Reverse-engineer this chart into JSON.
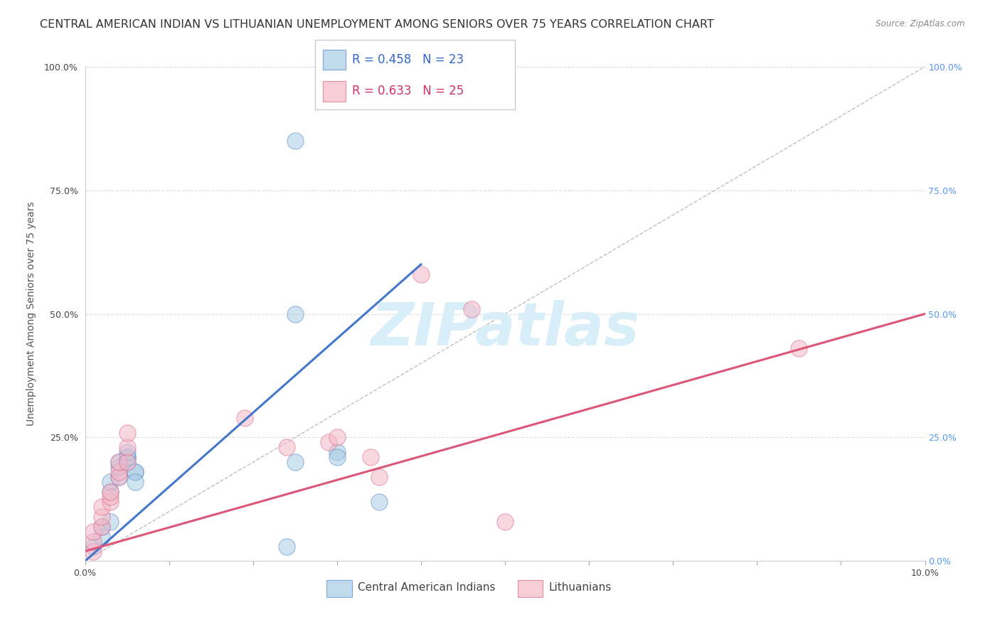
{
  "title": "CENTRAL AMERICAN INDIAN VS LITHUANIAN UNEMPLOYMENT AMONG SENIORS OVER 75 YEARS CORRELATION CHART",
  "source": "Source: ZipAtlas.com",
  "ylabel": "Unemployment Among Seniors over 75 years",
  "xlim": [
    0.0,
    0.1
  ],
  "ylim": [
    0.0,
    1.0
  ],
  "color_blue_fill": "#a8cce4",
  "color_pink_fill": "#f4b8c8",
  "color_blue_edge": "#5588cc",
  "color_pink_edge": "#dd6688",
  "color_blue_line": "#4477cc",
  "color_pink_line": "#dd5577",
  "color_diag": "#aaaaaa",
  "color_right_tick": "#5599ee",
  "watermark_text": "ZIPatlas",
  "watermark_color": "#d8eef8",
  "blue_points_x": [
    0.001,
    0.002,
    0.002,
    0.003,
    0.003,
    0.003,
    0.004,
    0.004,
    0.004,
    0.005,
    0.005,
    0.005,
    0.005,
    0.006,
    0.006,
    0.006,
    0.024,
    0.025,
    0.025,
    0.03,
    0.03,
    0.035,
    0.025
  ],
  "blue_points_y": [
    0.03,
    0.05,
    0.07,
    0.08,
    0.14,
    0.16,
    0.17,
    0.19,
    0.2,
    0.2,
    0.21,
    0.21,
    0.22,
    0.18,
    0.18,
    0.16,
    0.03,
    0.2,
    0.5,
    0.22,
    0.21,
    0.12,
    0.85
  ],
  "pink_points_x": [
    0.001,
    0.001,
    0.001,
    0.002,
    0.002,
    0.002,
    0.003,
    0.003,
    0.003,
    0.004,
    0.004,
    0.004,
    0.005,
    0.005,
    0.005,
    0.019,
    0.024,
    0.029,
    0.03,
    0.034,
    0.035,
    0.04,
    0.05,
    0.085,
    0.046
  ],
  "pink_points_y": [
    0.02,
    0.04,
    0.06,
    0.07,
    0.09,
    0.11,
    0.12,
    0.13,
    0.14,
    0.17,
    0.18,
    0.2,
    0.2,
    0.23,
    0.26,
    0.29,
    0.23,
    0.24,
    0.25,
    0.21,
    0.17,
    0.58,
    0.08,
    0.43,
    0.51
  ],
  "blue_line_x": [
    0.0,
    0.04
  ],
  "blue_line_y": [
    0.0,
    0.6
  ],
  "pink_line_x": [
    0.0,
    0.1
  ],
  "pink_line_y": [
    0.02,
    0.5
  ],
  "diag_line_x": [
    0.0,
    0.1
  ],
  "diag_line_y": [
    0.0,
    1.0
  ],
  "legend_r1": "R = 0.458",
  "legend_n1": "N = 23",
  "legend_r2": "R = 0.633",
  "legend_n2": "N = 25",
  "legend_label1": "Central American Indians",
  "legend_label2": "Lithuanians",
  "title_fontsize": 11.5,
  "axis_label_fontsize": 10,
  "tick_fontsize": 9,
  "legend_fontsize": 12
}
